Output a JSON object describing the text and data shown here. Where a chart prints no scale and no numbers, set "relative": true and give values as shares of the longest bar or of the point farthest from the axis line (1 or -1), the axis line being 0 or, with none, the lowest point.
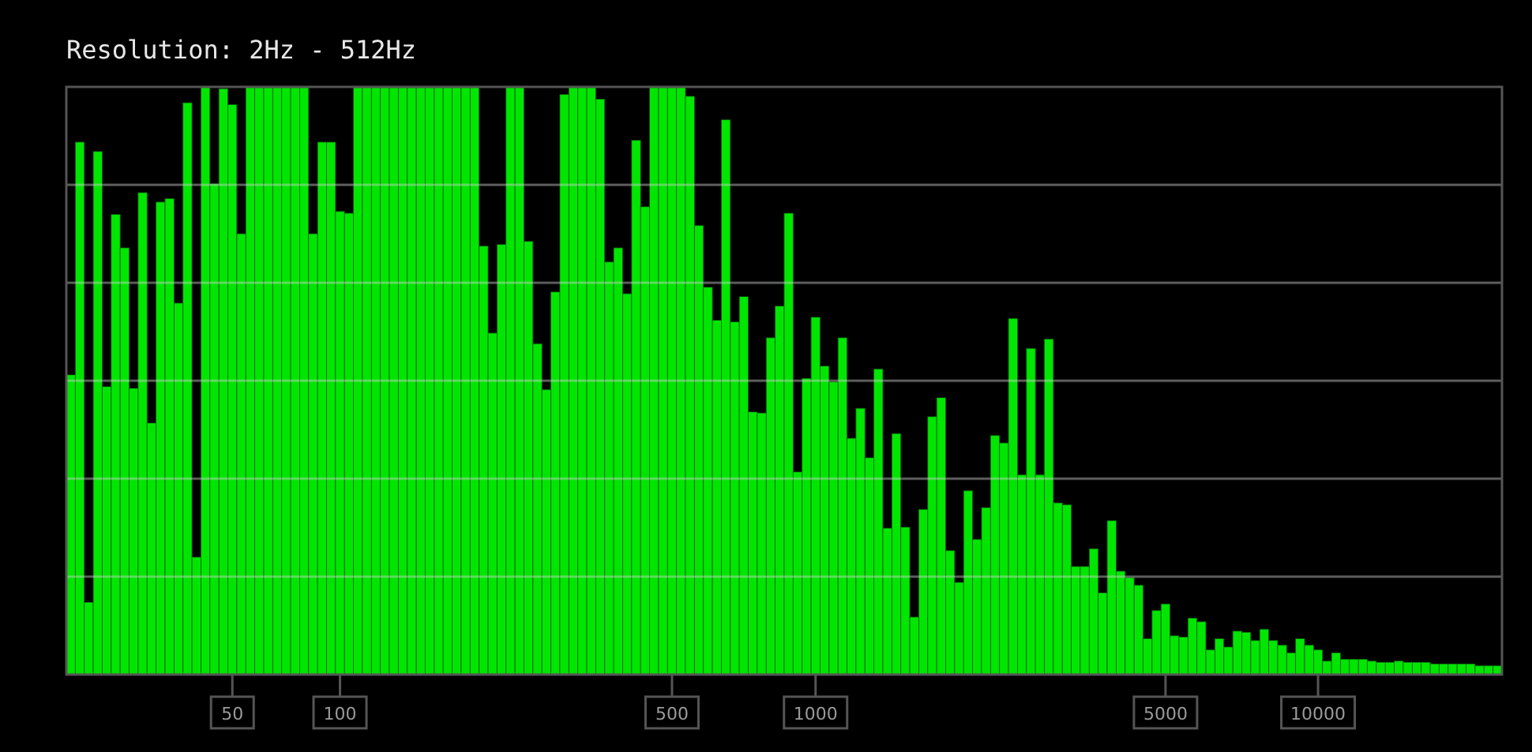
{
  "chart_data": {
    "type": "bar",
    "title": "Resolution: 2Hz - 512Hz",
    "relative": true,
    "grid": true,
    "color": "#00e600",
    "categories": [
      null,
      null,
      null,
      null,
      null,
      null,
      null,
      null,
      null,
      null,
      null,
      null,
      null,
      null,
      null,
      null,
      null,
      null,
      "50",
      null,
      null,
      null,
      null,
      null,
      null,
      null,
      null,
      null,
      null,
      null,
      "100",
      null,
      null,
      null,
      null,
      null,
      null,
      null,
      null,
      null,
      null,
      null,
      null,
      null,
      null,
      null,
      null,
      null,
      null,
      null,
      null,
      null,
      null,
      null,
      null,
      null,
      null,
      null,
      null,
      null,
      null,
      null,
      null,
      null,
      null,
      null,
      null,
      "500",
      null,
      null,
      null,
      null,
      null,
      null,
      null,
      null,
      null,
      null,
      null,
      null,
      null,
      null,
      null,
      "1000",
      null,
      null,
      null,
      null,
      null,
      null,
      null,
      null,
      null,
      null,
      null,
      null,
      null,
      null,
      null,
      null,
      null,
      null,
      null,
      null,
      null,
      null,
      null,
      null,
      null,
      null,
      null,
      null,
      null,
      null,
      null,
      null,
      null,
      null,
      null,
      null,
      null,
      null,
      "5000",
      null,
      null,
      null,
      null,
      null,
      null,
      null,
      null,
      null,
      null,
      null,
      null,
      null,
      null,
      null,
      null,
      "10000",
      null,
      null,
      null,
      null,
      null,
      null,
      null,
      null,
      null,
      null,
      null,
      null,
      null,
      null,
      null,
      null,
      null,
      null,
      null,
      null
    ],
    "values": [
      0.51,
      0.906,
      0.123,
      0.89,
      0.49,
      0.783,
      0.726,
      0.487,
      0.82,
      0.428,
      0.804,
      0.81,
      0.632,
      0.973,
      0.2,
      1,
      0.835,
      0.997,
      0.97,
      0.75,
      1,
      1,
      1,
      1,
      1,
      1,
      1,
      0.75,
      0.906,
      0.906,
      0.788,
      0.785,
      1,
      1,
      1,
      1,
      1,
      1,
      1,
      1,
      1,
      1,
      1,
      1,
      1,
      1,
      0.729,
      0.581,
      0.732,
      1,
      1,
      0.737,
      0.563,
      0.485,
      0.651,
      0.987,
      1,
      1,
      1,
      0.979,
      0.702,
      0.726,
      0.648,
      0.909,
      0.796,
      1,
      1,
      1,
      1,
      0.984,
      0.764,
      0.659,
      0.603,
      0.944,
      0.6,
      0.643,
      0.447,
      0.445,
      0.573,
      0.627,
      0.785,
      0.345,
      0.504,
      0.608,
      0.525,
      0.498,
      0.573,
      0.402,
      0.453,
      0.369,
      0.52,
      0.249,
      0.41,
      0.251,
      0.098,
      0.281,
      0.439,
      0.471,
      0.211,
      0.157,
      0.313,
      0.23,
      0.284,
      0.407,
      0.394,
      0.606,
      0.34,
      0.555,
      0.34,
      0.571,
      0.292,
      0.289,
      0.184,
      0.184,
      0.214,
      0.139,
      0.262,
      0.176,
      0.165,
      0.152,
      0.061,
      0.109,
      0.12,
      0.066,
      0.064,
      0.096,
      0.09,
      0.042,
      0.061,
      0.047,
      0.074,
      0.072,
      0.058,
      0.077,
      0.058,
      0.05,
      0.037,
      0.061,
      0.05,
      0.042,
      0.023,
      0.037,
      0.026,
      0.026,
      0.026,
      0.023,
      0.021,
      0.021,
      0.023,
      0.021,
      0.021,
      0.021,
      0.018,
      0.018,
      0.018,
      0.018,
      0.018,
      0.015,
      0.015,
      0.015
    ]
  }
}
